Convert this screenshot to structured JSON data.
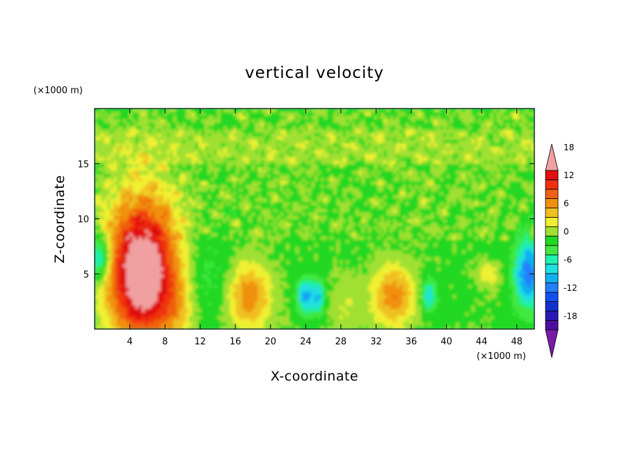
{
  "chart_data": {
    "type": "heatmap",
    "title": "vertical velocity",
    "xlabel": "X-coordinate",
    "ylabel": "Z-coordinate",
    "x_unit": "(×1000 m)",
    "y_unit": "(×1000 m)",
    "xlim": [
      0,
      50
    ],
    "ylim": [
      0,
      20
    ],
    "x_ticks": [
      "4",
      "8",
      "12",
      "16",
      "20",
      "24",
      "28",
      "32",
      "36",
      "40",
      "44",
      "48"
    ],
    "y_ticks": [
      "5",
      "10",
      "15"
    ],
    "colorbar": {
      "range": [
        -21,
        21
      ],
      "step": 2,
      "labels": [
        "18",
        "12",
        "6",
        "0",
        "-6",
        "-12",
        "-18"
      ],
      "extend": "both",
      "colors": [
        "#7a1aa8",
        "#4b0fa0",
        "#2a1ab4",
        "#1030d0",
        "#1050f0",
        "#2080ff",
        "#10b0f0",
        "#20e0e0",
        "#20f0b0",
        "#40e840",
        "#20d820",
        "#a0e030",
        "#f0f030",
        "#f0c020",
        "#f09010",
        "#f06010",
        "#f03010",
        "#e01010",
        "#f0a0a0"
      ]
    },
    "features": [
      {
        "x": 5.5,
        "z": 5.2,
        "peak": 18
      },
      {
        "x": 17.5,
        "z": 3.0,
        "peak": 7
      },
      {
        "x": 34.0,
        "z": 3.0,
        "peak": 7
      },
      {
        "x": 44.8,
        "z": 5.0,
        "peak": 4
      },
      {
        "x": 24.0,
        "z": 3.0,
        "peak": -8
      },
      {
        "x": 38.0,
        "z": 3.0,
        "peak": -6
      },
      {
        "x": 49.0,
        "z": 5.0,
        "peak": -10
      },
      {
        "x": 0.6,
        "z": 6.5,
        "peak": -8
      }
    ]
  }
}
